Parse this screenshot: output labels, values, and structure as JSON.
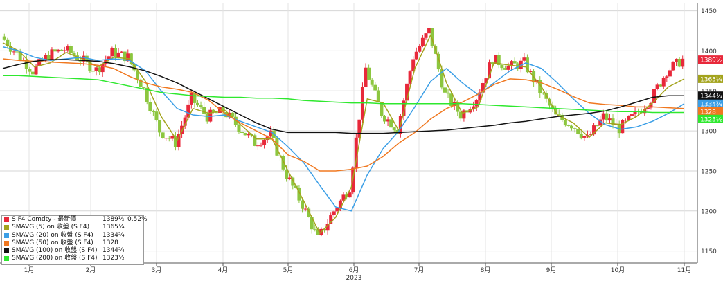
{
  "chart_data": {
    "type": "candlestick",
    "x_tick_labels": [
      "1月",
      "2月",
      "3月",
      "4月",
      "5月",
      "6月",
      "7月",
      "8月",
      "9月",
      "10月",
      "11月"
    ],
    "x_year_label": "2023",
    "y_tick_labels": [
      "1150",
      "1200",
      "1250",
      "1300",
      "1350",
      "1400",
      "1450"
    ],
    "ylim": [
      1135,
      1460
    ],
    "grid": true,
    "up_color": "#e8283a",
    "down_color": "#8cc63f",
    "price_series": {
      "name": "S F4 Comdty - 最新價",
      "x": [
        0,
        1,
        2,
        3,
        4,
        5,
        6,
        7,
        8,
        9,
        10,
        11,
        12,
        13,
        14,
        15,
        16,
        17,
        18,
        19,
        20,
        21,
        22,
        23,
        24,
        25,
        26,
        27,
        28,
        29,
        30,
        31,
        32,
        33,
        34,
        35,
        36,
        37,
        38,
        39,
        40,
        41,
        42,
        43
      ],
      "close": [
        1418,
        1396,
        1375,
        1395,
        1402,
        1390,
        1376,
        1398,
        1392,
        1352,
        1300,
        1285,
        1340,
        1318,
        1325,
        1305,
        1285,
        1295,
        1245,
        1208,
        1165,
        1200,
        1230,
        1378,
        1322,
        1302,
        1393,
        1425,
        1345,
        1320,
        1342,
        1390,
        1380,
        1385,
        1350,
        1318,
        1308,
        1290,
        1318,
        1303,
        1320,
        1340,
        1375,
        1389
      ]
    },
    "ma_series": [
      {
        "name": "SMAVG (5)  on 收盤 (S F4)",
        "color": "#a3a31c",
        "last": "1365",
        "x": [
          0,
          1,
          2,
          3,
          4,
          5,
          6,
          7,
          8,
          9,
          10,
          11,
          12,
          13,
          14,
          15,
          16,
          17,
          18,
          19,
          20,
          21,
          22,
          23,
          24,
          25,
          26,
          27,
          28,
          29,
          30,
          31,
          32,
          33,
          34,
          35,
          36,
          37,
          38,
          39,
          40,
          41,
          42,
          43
        ],
        "y": [
          1410,
          1400,
          1380,
          1385,
          1398,
          1390,
          1380,
          1392,
          1390,
          1362,
          1318,
          1288,
          1328,
          1322,
          1326,
          1308,
          1290,
          1290,
          1250,
          1212,
          1172,
          1192,
          1230,
          1340,
          1335,
          1300,
          1378,
          1420,
          1360,
          1322,
          1330,
          1385,
          1382,
          1380,
          1355,
          1320,
          1310,
          1292,
          1310,
          1308,
          1318,
          1335,
          1355,
          1365
        ]
      },
      {
        "name": "SMAVG (20)  on 收盤 (S F4)",
        "color": "#3a9ee6",
        "last": "1334",
        "x": [
          0,
          1,
          2,
          3,
          4,
          5,
          6,
          7,
          8,
          9,
          10,
          11,
          12,
          13,
          14,
          15,
          16,
          17,
          18,
          19,
          20,
          21,
          22,
          23,
          24,
          25,
          26,
          27,
          28,
          29,
          30,
          31,
          32,
          33,
          34,
          35,
          36,
          37,
          38,
          39,
          40,
          41,
          42,
          43
        ],
        "y": [
          1405,
          1400,
          1392,
          1388,
          1390,
          1392,
          1388,
          1390,
          1388,
          1375,
          1350,
          1328,
          1320,
          1318,
          1320,
          1312,
          1305,
          1298,
          1280,
          1260,
          1232,
          1205,
          1200,
          1245,
          1278,
          1300,
          1330,
          1362,
          1378,
          1360,
          1345,
          1360,
          1375,
          1385,
          1378,
          1360,
          1340,
          1322,
          1308,
          1302,
          1305,
          1312,
          1322,
          1334
        ]
      },
      {
        "name": "SMAVG (50)  on 收盤 (S F4)",
        "color": "#f07820",
        "last": "1328",
        "x": [
          0,
          1,
          2,
          3,
          4,
          5,
          6,
          7,
          8,
          9,
          10,
          11,
          12,
          13,
          14,
          15,
          16,
          17,
          18,
          19,
          20,
          21,
          22,
          23,
          24,
          25,
          26,
          27,
          28,
          29,
          30,
          31,
          32,
          33,
          34,
          35,
          36,
          37,
          38,
          39,
          40,
          41,
          42,
          43
        ],
        "y": [
          1390,
          1388,
          1387,
          1386,
          1385,
          1384,
          1382,
          1378,
          1368,
          1360,
          1355,
          1352,
          1348,
          1338,
          1322,
          1310,
          1300,
          1290,
          1270,
          1262,
          1250,
          1250,
          1252,
          1256,
          1268,
          1285,
          1298,
          1315,
          1328,
          1336,
          1346,
          1358,
          1365,
          1364,
          1360,
          1352,
          1343,
          1335,
          1333,
          1332,
          1330,
          1330,
          1329,
          1328
        ]
      },
      {
        "name": "SMAVG (100)  on 收盤 (S F4)",
        "color": "#111111",
        "last": "1344",
        "x": [
          0,
          1,
          2,
          3,
          4,
          5,
          6,
          7,
          8,
          9,
          10,
          11,
          12,
          13,
          14,
          15,
          16,
          17,
          18,
          19,
          20,
          21,
          22,
          23,
          24,
          25,
          26,
          27,
          28,
          29,
          30,
          31,
          32,
          33,
          34,
          35,
          36,
          37,
          38,
          39,
          40,
          41,
          42,
          43
        ],
        "y": [
          1378,
          1383,
          1387,
          1389,
          1389,
          1388,
          1387,
          1384,
          1380,
          1375,
          1368,
          1360,
          1350,
          1340,
          1330,
          1320,
          1310,
          1302,
          1298,
          1298,
          1298,
          1298,
          1297,
          1297,
          1297,
          1298,
          1299,
          1300,
          1301,
          1303,
          1305,
          1307,
          1310,
          1312,
          1315,
          1318,
          1320,
          1322,
          1325,
          1330,
          1336,
          1342,
          1344,
          1344
        ]
      },
      {
        "name": "SMAVG (200)  on 收盤 (S F4)",
        "color": "#2ee82e",
        "last": "1323",
        "x": [
          0,
          1,
          2,
          3,
          4,
          5,
          6,
          7,
          8,
          9,
          10,
          11,
          12,
          13,
          14,
          15,
          16,
          17,
          18,
          19,
          20,
          21,
          22,
          23,
          24,
          25,
          26,
          27,
          28,
          29,
          30,
          31,
          32,
          33,
          34,
          35,
          36,
          37,
          38,
          39,
          40,
          41,
          42,
          43
        ],
        "y": [
          1369,
          1369,
          1368,
          1367,
          1366,
          1365,
          1364,
          1360,
          1356,
          1352,
          1348,
          1346,
          1344,
          1343,
          1342,
          1342,
          1341,
          1341,
          1340,
          1338,
          1337,
          1336,
          1335,
          1335,
          1334,
          1334,
          1334,
          1334,
          1334,
          1334,
          1333,
          1332,
          1331,
          1330,
          1329,
          1328,
          1327,
          1326,
          1325,
          1324,
          1324,
          1323,
          1323,
          1323
        ]
      }
    ],
    "price_tags": [
      {
        "label": "1389½",
        "value": 1389,
        "bg": "#e8283a",
        "fg": "#ffffff"
      },
      {
        "label": "1365¼",
        "value": 1365,
        "bg": "#a3a31c",
        "fg": "#ffffff"
      },
      {
        "label": "1344¾",
        "value": 1344,
        "bg": "#111111",
        "fg": "#ffffff"
      },
      {
        "label": "1334¾",
        "value": 1334,
        "bg": "#3a9ee6",
        "fg": "#ffffff"
      },
      {
        "label": "1328",
        "value": 1328,
        "bg": "#f07820",
        "fg": "#ffffff"
      },
      {
        "label": "1323½",
        "value": 1323,
        "bg": "#2ee82e",
        "fg": "#ffffff"
      }
    ]
  },
  "legend": [
    {
      "name": "S F4 Comdty - 最新價",
      "value": "1389½",
      "change": "0.52%",
      "color": "#e8283a"
    },
    {
      "name": "SMAVG (5)  on 收盤 (S F4)",
      "value": "1365¼",
      "change": "",
      "color": "#a3a31c"
    },
    {
      "name": "SMAVG (20)  on 收盤 (S F4)",
      "value": "1334¾",
      "change": "",
      "color": "#3a9ee6"
    },
    {
      "name": "SMAVG (50)  on 收盤 (S F4)",
      "value": "1328",
      "change": "",
      "color": "#f07820"
    },
    {
      "name": "SMAVG (100)  on 收盤 (S F4)",
      "value": "1344¾",
      "change": "",
      "color": "#111111"
    },
    {
      "name": "SMAVG (200)  on 收盤 (S F4)",
      "value": "1323½",
      "change": "",
      "color": "#2ee82e"
    }
  ]
}
